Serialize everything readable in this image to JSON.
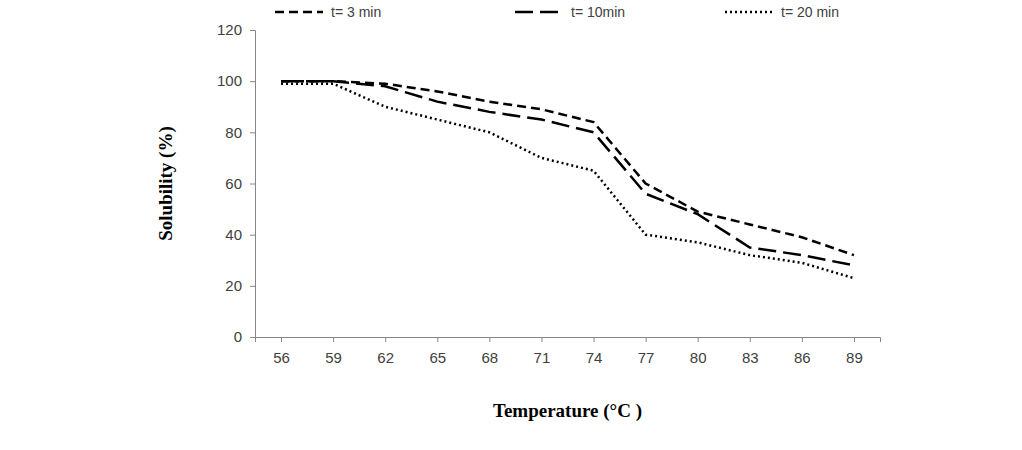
{
  "chart_data": {
    "type": "line",
    "x_label": "Temperature (°C )",
    "y_label": "Solubility (%)",
    "categories": [
      "56",
      "59",
      "62",
      "65",
      "68",
      "71",
      "74",
      "77",
      "80",
      "83",
      "86",
      "89"
    ],
    "series": [
      {
        "name": "t= 3 min",
        "color": "#000000",
        "line_style": "dashed",
        "values": [
          100,
          100,
          99,
          96,
          92,
          89,
          84,
          60,
          49,
          44,
          39,
          32
        ]
      },
      {
        "name": "t= 10min",
        "color": "#000000",
        "line_style": "long-dashed",
        "values": [
          100,
          100,
          98,
          92,
          88,
          85,
          80,
          56,
          48,
          35,
          32,
          28
        ]
      },
      {
        "name": "t= 20 min",
        "color": "#000000",
        "line_style": "dotted",
        "values": [
          99,
          99,
          90,
          85,
          80,
          70,
          65,
          40,
          37,
          32,
          29,
          23
        ]
      }
    ],
    "ylim": [
      0,
      120
    ],
    "yticks": [
      0,
      20,
      40,
      60,
      80,
      100,
      120
    ],
    "grid": false,
    "legend": "top"
  }
}
